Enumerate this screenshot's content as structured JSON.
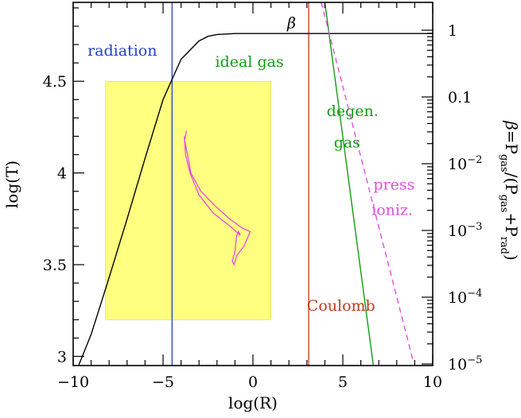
{
  "chart_data": {
    "type": "line",
    "xlabel": "log(R)",
    "ylabel": "log(T)",
    "xlim": [
      -10,
      10
    ],
    "ylim": [
      2.95,
      4.93
    ],
    "x_ticks": [
      "−10",
      "−5",
      "0",
      "5",
      "10"
    ],
    "x_tick_values": [
      -10,
      -5,
      0,
      5,
      10
    ],
    "y_ticks": [
      "3",
      "3.5",
      "4",
      "4.5"
    ],
    "y_tick_values": [
      3,
      3.5,
      4,
      4.5
    ],
    "right_axis": {
      "label": "β=P_gas/(P_gas+P_rad)",
      "label_parts": {
        "beta": "β",
        "eq": "=P",
        "sub1": "gas",
        "mid": "/(P",
        "sub2": "gas",
        "plus": "+P",
        "sub3": "rad",
        "close": ")"
      },
      "ticks": [
        {
          "label": "1",
          "exp": null,
          "log_beta": 0
        },
        {
          "label": "0.1",
          "exp": null,
          "log_beta": -1
        },
        {
          "label": "10",
          "exp": "−2",
          "log_beta": -2
        },
        {
          "label": "10",
          "exp": "−3",
          "log_beta": -3
        },
        {
          "label": "10",
          "exp": "−4",
          "log_beta": -4
        },
        {
          "label": "10",
          "exp": "−5",
          "log_beta": -5
        }
      ]
    },
    "region": {
      "x": [
        -8.2,
        1.0
      ],
      "y": [
        3.2,
        4.5
      ],
      "color": "#ffff80"
    },
    "vertical_lines": [
      {
        "name": "radiation",
        "x": -4.5,
        "color": "#1f3fcf"
      },
      {
        "name": "Coulomb",
        "x": 3.1,
        "color": "#c0391b"
      }
    ],
    "series": [
      {
        "name": "β",
        "color": "#000000",
        "x": [
          -9.7,
          -9.0,
          -8.0,
          -7.0,
          -6.0,
          -5.0,
          -4.0,
          -3.0,
          -2.5,
          -2.0,
          -1.0,
          0.0,
          2.0,
          5.0,
          10.0
        ],
        "y": [
          2.95,
          3.12,
          3.43,
          3.75,
          4.08,
          4.4,
          4.62,
          4.72,
          4.745,
          4.755,
          4.76,
          4.76,
          4.76,
          4.76,
          4.76
        ]
      },
      {
        "name": "ideal gas",
        "color": "#159b15",
        "x": [
          4.0,
          6.7
        ],
        "y": [
          4.93,
          2.95
        ]
      },
      {
        "name": "press. ioniz.",
        "color": "#e34ce3",
        "dashed": true,
        "x": [
          3.8,
          8.9
        ],
        "y": [
          4.93,
          2.98
        ]
      }
    ],
    "track": {
      "color": "#e34ce3",
      "x": [
        -3.7,
        -3.8,
        -3.6,
        -3.45,
        -2.9,
        -2.1,
        -1.3,
        -0.6,
        -0.15,
        -0.5,
        -0.9,
        -1.05,
        -1.15,
        -1.0,
        -0.95,
        -0.9,
        -0.8,
        -0.7,
        -1.4,
        -2.2,
        -3.0,
        -3.5,
        -3.75,
        -3.82
      ],
      "y": [
        4.23,
        4.18,
        4.08,
        4.0,
        3.9,
        3.82,
        3.75,
        3.7,
        3.68,
        3.6,
        3.55,
        3.5,
        3.52,
        3.57,
        3.62,
        3.66,
        3.68,
        3.66,
        3.72,
        3.78,
        3.88,
        4.0,
        4.1,
        4.2
      ]
    },
    "annotations": [
      {
        "text": "β",
        "color": "#000000",
        "x": 1.9,
        "y": 4.79
      },
      {
        "text": "radiation",
        "color": "#1f3fcf",
        "x": -9.2,
        "y": 4.64
      },
      {
        "text": "ideal gas",
        "color": "#159b15",
        "x": -2.1,
        "y": 4.58
      },
      {
        "text": "degen.",
        "color": "#159b15",
        "x": 4.1,
        "y": 4.31
      },
      {
        "text": "gas",
        "color": "#159b15",
        "x": 4.5,
        "y": 4.14
      },
      {
        "text": "press",
        "color": "#e34ce3",
        "x": 6.7,
        "y": 3.91
      },
      {
        "text": "ioniz.",
        "color": "#e34ce3",
        "x": 6.6,
        "y": 3.77
      },
      {
        "text": "Coulomb",
        "color": "#c0391b",
        "x": 3.0,
        "y": 3.25
      }
    ]
  }
}
